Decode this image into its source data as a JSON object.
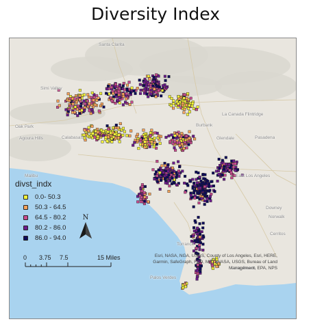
{
  "title": "Diversity Index",
  "legend": {
    "title": "divst_indx",
    "items": [
      {
        "label": "0.0- 50.3",
        "color": "#f2f23a"
      },
      {
        "label": "50.3 - 64.5",
        "color": "#f5a25a"
      },
      {
        "label": "64.5 - 80.2",
        "color": "#c84b8f"
      },
      {
        "label": "80.2 - 86.0",
        "color": "#6b1a8c"
      },
      {
        "label": "86.0 - 94.0",
        "color": "#0c0a5a"
      }
    ]
  },
  "north_arrow": {
    "letter": "N"
  },
  "scale_bar": {
    "labels": [
      "0",
      "3.75",
      "7.5",
      "15 Miles"
    ]
  },
  "attribution": "Esri, NASA, NGA, USGS, County of Los Angeles, Esri, HERE, Garmin, SafeGraph, FAO, METI/NASA, USGS, Bureau of Land Management, EPA, NPS",
  "basemap": {
    "land_color": "#e9e6df",
    "water_color": "#a9d3ef",
    "terrain_color": "#d9d7d0"
  },
  "place_labels": [
    "Santa Clarita",
    "Simi Valley",
    "Oak Park",
    "Calabasas",
    "Agoura Hills",
    "Malibu",
    "Burbank",
    "Glendale",
    "La Canada Flintridge",
    "Pasadena",
    "East Los Angeles",
    "Downey",
    "Norwalk",
    "Cerritos",
    "Long Beach",
    "Torrance",
    "Palos Verdes"
  ]
}
